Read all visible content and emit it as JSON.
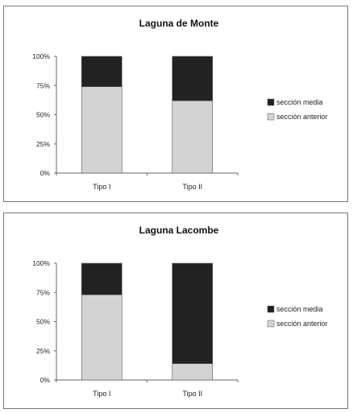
{
  "colors": {
    "media": "#222222",
    "anterior": "#d3d3d3",
    "axis": "#666666"
  },
  "chart_data": [
    {
      "type": "bar",
      "stacked": true,
      "percent": true,
      "title": "Laguna de Monte",
      "categories": [
        "Tipo I",
        "Tipo II"
      ],
      "series": [
        {
          "name": "sección anterior",
          "values": [
            74,
            62
          ]
        },
        {
          "name": "sección media",
          "values": [
            26,
            38
          ]
        }
      ],
      "ylim": [
        0,
        100
      ],
      "yticks": [
        "0%",
        "25%",
        "50%",
        "75%",
        "100%"
      ],
      "legend_placement": "right",
      "grid": false
    },
    {
      "type": "bar",
      "stacked": true,
      "percent": true,
      "title": "Laguna Lacombe",
      "categories": [
        "Tipo I",
        "Tipo II"
      ],
      "series": [
        {
          "name": "sección anterior",
          "values": [
            73,
            14
          ]
        },
        {
          "name": "sección media",
          "values": [
            27,
            86
          ]
        }
      ],
      "ylim": [
        0,
        100
      ],
      "yticks": [
        "0%",
        "25%",
        "50%",
        "75%",
        "100%"
      ],
      "legend_placement": "right",
      "grid": false
    }
  ]
}
